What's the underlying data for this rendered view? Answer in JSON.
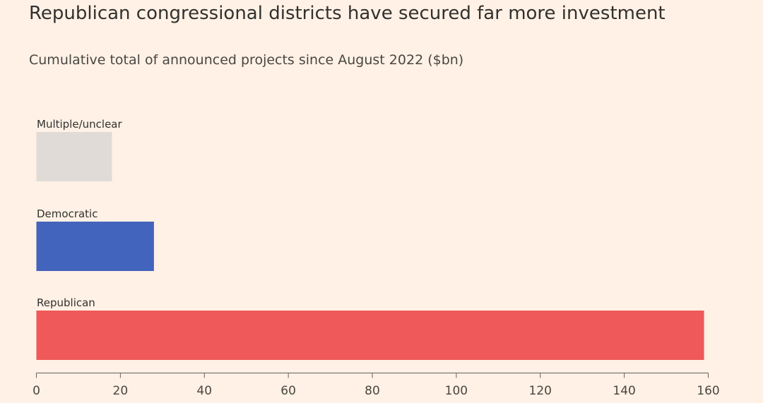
{
  "chart_data": {
    "type": "bar",
    "orientation": "horizontal",
    "title": "Republican congressional districts have secured far more investment",
    "subtitle": "Cumulative total of announced projects since August 2022 ($bn)",
    "categories": [
      "Multiple/unclear",
      "Democratic",
      "Republican"
    ],
    "values": [
      18,
      28,
      159
    ],
    "colors": [
      "#E0DBD6",
      "#4364BD",
      "#EF5959"
    ],
    "xlim": [
      0,
      160
    ],
    "xticks": [
      0,
      20,
      40,
      60,
      80,
      100,
      120,
      140,
      160
    ],
    "xlabel": "",
    "ylabel": "",
    "grid": false,
    "legend": "none"
  }
}
